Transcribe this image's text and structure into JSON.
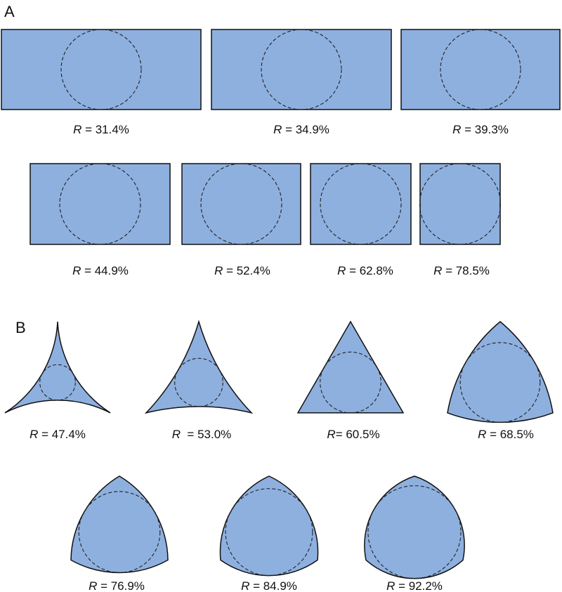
{
  "panels": [
    {
      "label": "A",
      "rows": [
        [
          {
            "symbol": "R",
            "text": " = 31.4%"
          },
          {
            "symbol": "R",
            "text": " = 34.9%"
          },
          {
            "symbol": "R",
            "text": " = 39.3%"
          }
        ],
        [
          {
            "symbol": "R",
            "text": " = 44.9%"
          },
          {
            "symbol": "R",
            "text": " = 52.4%"
          },
          {
            "symbol": "R",
            "text": " = 62.8%"
          },
          {
            "symbol": "R",
            "text": " = 78.5%"
          }
        ]
      ]
    },
    {
      "label": "B",
      "rows": [
        [
          {
            "symbol": "R",
            "text": " = 47.4%"
          },
          {
            "symbol": "R",
            "text": "  = 53.0%"
          },
          {
            "symbol": "R",
            "text": "= 60.5%"
          },
          {
            "symbol": "R",
            "text": " = 68.5%"
          }
        ],
        [
          {
            "symbol": "R",
            "text": " = 76.9%"
          },
          {
            "symbol": "R",
            "text": " = 84.9%"
          },
          {
            "symbol": "R",
            "text": " = 92.2%"
          }
        ]
      ]
    }
  ]
}
